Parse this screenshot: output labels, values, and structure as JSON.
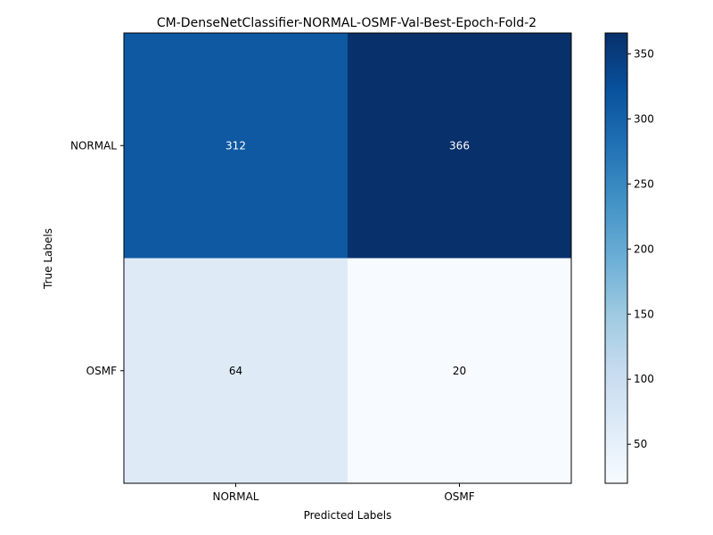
{
  "chart_data": {
    "type": "heatmap",
    "title": "CM-DenseNetClassifier-NORMAL-OSMF-Val-Best-Epoch-Fold-2",
    "xlabel": "Predicted Labels",
    "ylabel": "True Labels",
    "x_categories": [
      "NORMAL",
      "OSMF"
    ],
    "y_categories": [
      "NORMAL",
      "OSMF"
    ],
    "matrix": [
      [
        312,
        366
      ],
      [
        64,
        20
      ]
    ],
    "colormap": "Blues",
    "colorbar": {
      "min": 20,
      "max": 366,
      "ticks": [
        50,
        100,
        150,
        200,
        250,
        300,
        350
      ],
      "tick_labels": [
        "50",
        "100",
        "150",
        "200",
        "250",
        "300",
        "350"
      ]
    },
    "colors": {
      "low": "#f7fbff",
      "high": "#08306b",
      "text_dark_cells": "#ffffff",
      "text_light_cells": "#000000"
    }
  }
}
